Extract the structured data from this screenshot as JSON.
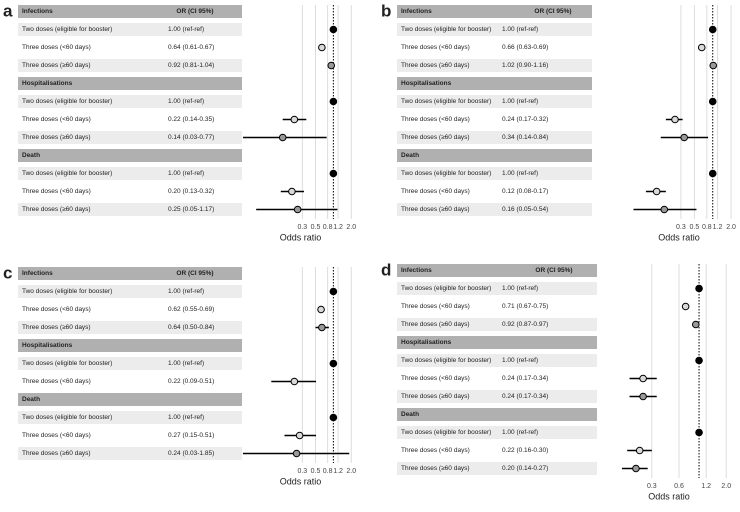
{
  "chart_data": [
    {
      "type": "forest",
      "label": "a",
      "or_header": "OR (CI 95%)",
      "xlabel": "Odds ratio",
      "xscale": "log",
      "xlim": [
        0.03,
        2.6
      ],
      "xticks": [
        0.3,
        0.5,
        0.8,
        1.2,
        {
          "value": 2,
          "label": "2.0"
        }
      ],
      "reference": 1,
      "grid": true,
      "groups": [
        {
          "name": "Infections",
          "rows": [
            {
              "label": "Two doses (eligible for booster)",
              "or_label": "1.00 (ref-ref)",
              "or": 1,
              "color": "#000000"
            },
            {
              "label": "Three doses (<60 days)",
              "or_label": "0.64 (0.61-0.67)",
              "or": 0.64,
              "lo": 0.61,
              "hi": 0.67,
              "color": "#d9d9d9"
            },
            {
              "label": "Three doses (≥60 days)",
              "or_label": "0.92 (0.81-1.04)",
              "or": 0.92,
              "lo": 0.81,
              "hi": 1.04,
              "color": "#999999"
            }
          ]
        },
        {
          "name": "Hospitalisations",
          "rows": [
            {
              "label": "Two doses (eligible for booster)",
              "or_label": "1.00 (ref-ref)",
              "or": 1,
              "color": "#000000"
            },
            {
              "label": "Three doses (<60 days)",
              "or_label": "0.22 (0.14-0.35)",
              "or": 0.22,
              "lo": 0.14,
              "hi": 0.35,
              "color": "#d9d9d9"
            },
            {
              "label": "Three doses (≥60 days)",
              "or_label": "0.14 (0.03-0.77)",
              "or": 0.14,
              "lo": 0.03,
              "hi": 0.77,
              "color": "#999999"
            }
          ]
        },
        {
          "name": "Death",
          "rows": [
            {
              "label": "Two doses (eligible for booster)",
              "or_label": "1.00 (ref-ref)",
              "or": 1,
              "color": "#000000"
            },
            {
              "label": "Three doses (<60 days)",
              "or_label": "0.20 (0.13-0.32)",
              "or": 0.2,
              "lo": 0.13,
              "hi": 0.32,
              "color": "#d9d9d9"
            },
            {
              "label": "Three doses (≥60 days)",
              "or_label": "0.25 (0.05-1.17)",
              "or": 0.25,
              "lo": 0.05,
              "hi": 1.17,
              "color": "#999999"
            }
          ]
        }
      ]
    },
    {
      "type": "forest",
      "label": "b",
      "or_header": "OR (CI 95%)",
      "xlabel": "Odds ratio",
      "xscale": "log",
      "xlim": [
        0.03,
        2.6
      ],
      "xticks": [
        0.3,
        0.5,
        0.8,
        1.2,
        {
          "value": 2,
          "label": "2.0"
        }
      ],
      "reference": 1,
      "grid": true,
      "groups": [
        {
          "name": "Infections",
          "rows": [
            {
              "label": "Two doses (eligible for booster)",
              "or_label": "1.00 (ref-ref)",
              "or": 1,
              "color": "#000000"
            },
            {
              "label": "Three doses (<60 days)",
              "or_label": "0.66 (0.63-0.69)",
              "or": 0.66,
              "lo": 0.63,
              "hi": 0.69,
              "color": "#d9d9d9"
            },
            {
              "label": "Three doses (≥60 days)",
              "or_label": "1.02 (0.90-1.16)",
              "or": 1.02,
              "lo": 0.9,
              "hi": 1.16,
              "color": "#999999"
            }
          ]
        },
        {
          "name": "Hospitalisations",
          "rows": [
            {
              "label": "Two doses (eligible for booster)",
              "or_label": "1.00 (ref-ref)",
              "or": 1,
              "color": "#000000"
            },
            {
              "label": "Three doses (<60 days)",
              "or_label": "0.24 (0.17-0.32)",
              "or": 0.24,
              "lo": 0.17,
              "hi": 0.32,
              "color": "#d9d9d9"
            },
            {
              "label": "Three doses (≥60 days)",
              "or_label": "0.34 (0.14-0.84)",
              "or": 0.34,
              "lo": 0.14,
              "hi": 0.84,
              "color": "#999999"
            }
          ]
        },
        {
          "name": "Death",
          "rows": [
            {
              "label": "Two doses (eligible for booster)",
              "or_label": "1.00 (ref-ref)",
              "or": 1,
              "color": "#000000"
            },
            {
              "label": "Three doses (<60 days)",
              "or_label": "0.12 (0.08-0.17)",
              "or": 0.12,
              "lo": 0.08,
              "hi": 0.17,
              "color": "#d9d9d9"
            },
            {
              "label": "Three doses (≥60 days)",
              "or_label": "0.16 (0.05-0.54)",
              "or": 0.16,
              "lo": 0.05,
              "hi": 0.54,
              "color": "#999999"
            }
          ]
        }
      ]
    },
    {
      "type": "forest",
      "label": "c",
      "or_header": "OR (CI 95%)",
      "xlabel": "Odds ratio",
      "xscale": "log",
      "xlim": [
        0.03,
        2.6
      ],
      "xticks": [
        0.3,
        0.5,
        0.8,
        1.2,
        {
          "value": 2,
          "label": "2.0"
        }
      ],
      "reference": 1,
      "grid": true,
      "groups": [
        {
          "name": "Infections",
          "rows": [
            {
              "label": "Two doses (eligible for booster)",
              "or_label": "1.00 (ref-ref)",
              "or": 1,
              "color": "#000000"
            },
            {
              "label": "Three doses (<60 days)",
              "or_label": "0.62 (0.55-0.69)",
              "or": 0.62,
              "lo": 0.55,
              "hi": 0.69,
              "color": "#d9d9d9"
            },
            {
              "label": "Three doses (≥60 days)",
              "or_label": "0.64 (0.50-0.84)",
              "or": 0.64,
              "lo": 0.5,
              "hi": 0.84,
              "color": "#999999"
            }
          ]
        },
        {
          "name": "Hospitalisations",
          "rows": [
            {
              "label": "Two doses (eligible for booster)",
              "or_label": "1.00 (ref-ref)",
              "or": 1,
              "color": "#000000"
            },
            {
              "label": "Three doses (<60 days)",
              "or_label": "0.22 (0.09-0.51)",
              "or": 0.22,
              "lo": 0.09,
              "hi": 0.51,
              "color": "#d9d9d9"
            }
          ]
        },
        {
          "name": "Death",
          "rows": [
            {
              "label": "Two doses (eligible for booster)",
              "or_label": "1.00 (ref-ref)",
              "or": 1,
              "color": "#000000"
            },
            {
              "label": "Three doses (<60 days)",
              "or_label": "0.27 (0.15-0.51)",
              "or": 0.27,
              "lo": 0.15,
              "hi": 0.51,
              "color": "#d9d9d9"
            },
            {
              "label": "Three doses (≥60 days)",
              "or_label": "0.24 (0.03-1.85)",
              "or": 0.24,
              "lo": 0.03,
              "hi": 1.85,
              "color": "#999999"
            }
          ]
        }
      ]
    },
    {
      "type": "forest",
      "label": "d",
      "or_header": "OR (CI 95%)",
      "xlabel": "Odds ratio",
      "xscale": "log",
      "xlim": [
        0.08,
        2.7
      ],
      "xticks": [
        0.3,
        0.6,
        1.2,
        {
          "value": 2,
          "label": "2.0"
        }
      ],
      "reference": 1,
      "grid": true,
      "groups": [
        {
          "name": "Infections",
          "rows": [
            {
              "label": "Two doses (eligible for booster)",
              "or_label": "1.00 (ref-ref)",
              "or": 1,
              "color": "#000000"
            },
            {
              "label": "Three doses (<60 days)",
              "or_label": "0.71 (0.67-0.75)",
              "or": 0.71,
              "lo": 0.67,
              "hi": 0.75,
              "color": "#d9d9d9"
            },
            {
              "label": "Three doses (≥60 days)",
              "or_label": "0.92 (0.87-0.97)",
              "or": 0.92,
              "lo": 0.87,
              "hi": 0.97,
              "color": "#999999"
            }
          ]
        },
        {
          "name": "Hospitalisations",
          "rows": [
            {
              "label": "Two doses (eligible for booster)",
              "or_label": "1.00 (ref-ref)",
              "or": 1,
              "color": "#000000"
            },
            {
              "label": "Three doses (<60 days)",
              "or_label": "0.24 (0.17-0.34)",
              "or": 0.24,
              "lo": 0.17,
              "hi": 0.34,
              "color": "#d9d9d9"
            },
            {
              "label": "Three doses (≥60 days)",
              "or_label": "0.24 (0.17-0.34)",
              "or": 0.24,
              "lo": 0.17,
              "hi": 0.34,
              "color": "#999999"
            }
          ]
        },
        {
          "name": "Death",
          "rows": [
            {
              "label": "Two doses (eligible for booster)",
              "or_label": "1.00 (ref-ref)",
              "or": 1,
              "color": "#000000"
            },
            {
              "label": "Three doses (<60 days)",
              "or_label": "0.22 (0.16-0.30)",
              "or": 0.22,
              "lo": 0.16,
              "hi": 0.3,
              "color": "#d9d9d9"
            },
            {
              "label": "Three doses (≥60 days)",
              "or_label": "0.20 (0.14-0.27)",
              "or": 0.2,
              "lo": 0.14,
              "hi": 0.27,
              "color": "#999999"
            }
          ]
        }
      ]
    }
  ]
}
